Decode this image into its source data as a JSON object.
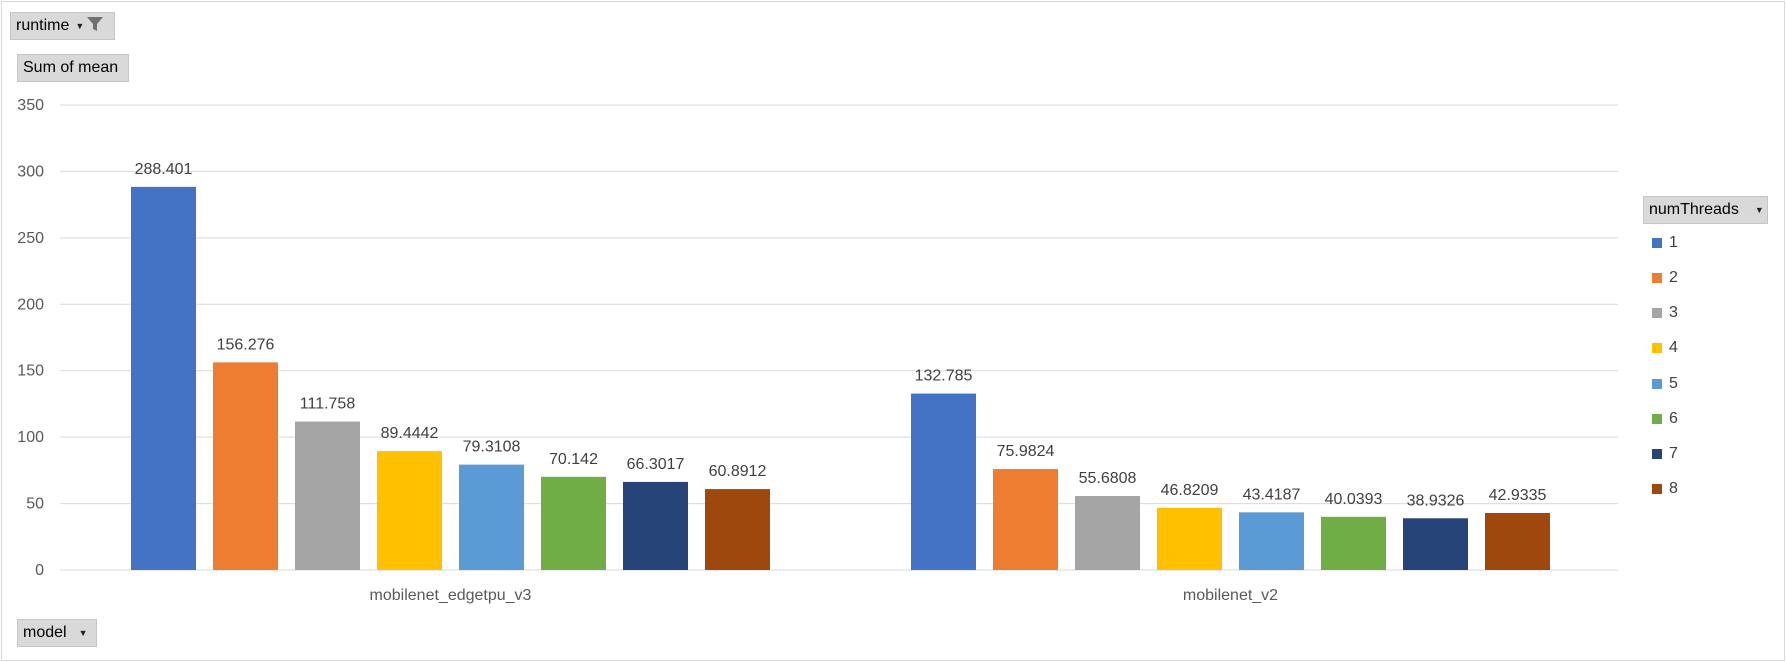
{
  "pivot": {
    "filter_field": "runtime",
    "value_field": "Sum of mean",
    "axis_field": "model",
    "legend_field": "numThreads"
  },
  "icons": {
    "filter": "filter-funnel-icon",
    "dropdown": "chevron-down-icon"
  },
  "colors": {
    "gridline": "#d9d9d9",
    "tick_text": "#595959",
    "label_text": "#404040",
    "button_bg": "#d9d9d9"
  },
  "chart_data": {
    "type": "bar",
    "categories": [
      "mobilenet_edgetpu_v3",
      "mobilenet_v2"
    ],
    "ylim": [
      0,
      350
    ],
    "yticks": [
      0,
      50,
      100,
      150,
      200,
      250,
      300,
      350
    ],
    "grid": true,
    "legend_position": "right",
    "series": [
      {
        "name": "1",
        "color": "#4472C4",
        "values": [
          288.401,
          132.785
        ],
        "labels": [
          "288.401",
          "132.785"
        ]
      },
      {
        "name": "2",
        "color": "#ED7D31",
        "values": [
          156.276,
          75.9824
        ],
        "labels": [
          "156.276",
          "75.9824"
        ]
      },
      {
        "name": "3",
        "color": "#A5A5A5",
        "values": [
          111.758,
          55.6808
        ],
        "labels": [
          "111.758",
          "55.6808"
        ]
      },
      {
        "name": "4",
        "color": "#FFC000",
        "values": [
          89.4442,
          46.8209
        ],
        "labels": [
          "89.4442",
          "46.8209"
        ]
      },
      {
        "name": "5",
        "color": "#5B9BD5",
        "values": [
          79.3108,
          43.4187
        ],
        "labels": [
          "79.3108",
          "43.4187"
        ]
      },
      {
        "name": "6",
        "color": "#70AD47",
        "values": [
          70.142,
          40.0393
        ],
        "labels": [
          "70.142",
          "40.0393"
        ]
      },
      {
        "name": "7",
        "color": "#264478",
        "values": [
          66.3017,
          38.9326
        ],
        "labels": [
          "66.3017",
          "38.9326"
        ]
      },
      {
        "name": "8",
        "color": "#9E480E",
        "values": [
          60.8912,
          42.9335
        ],
        "labels": [
          "60.8912",
          "42.9335"
        ]
      }
    ]
  }
}
